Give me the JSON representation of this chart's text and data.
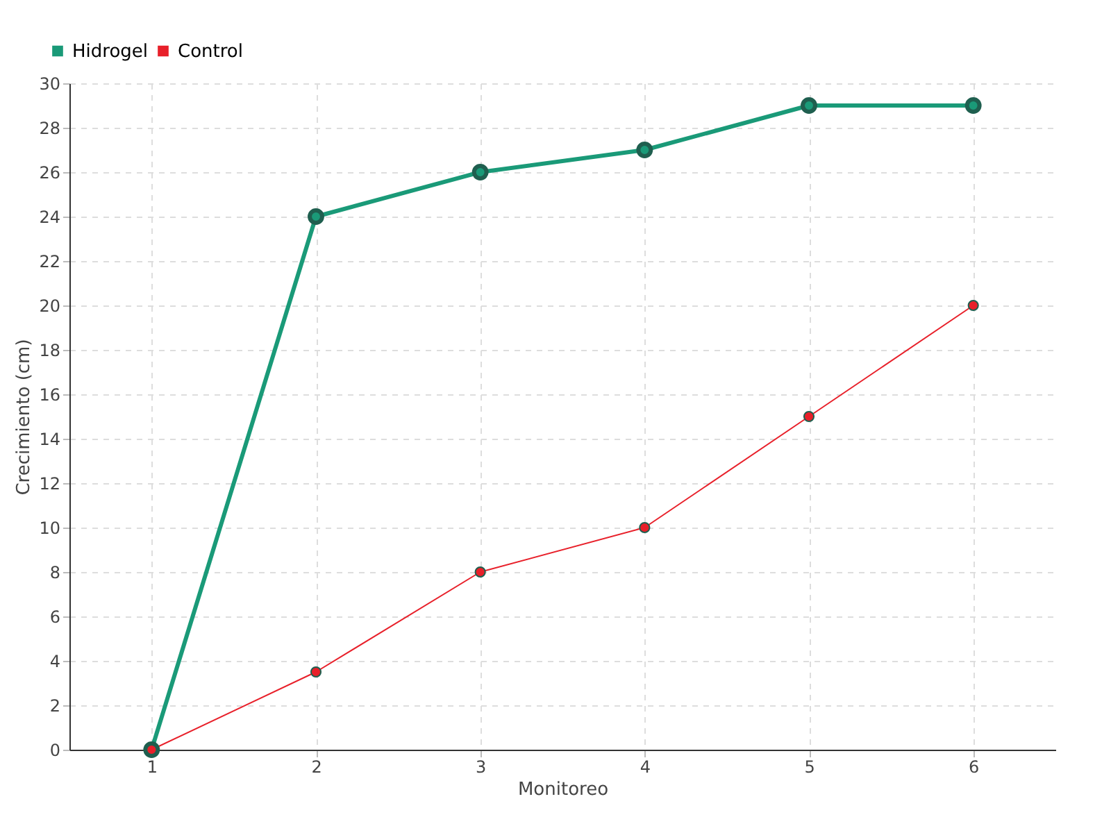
{
  "chart_data": {
    "type": "line",
    "xlabel": "Monitoreo",
    "ylabel": "Crecimiento (cm)",
    "x": [
      1,
      2,
      3,
      4,
      5,
      6
    ],
    "series": [
      {
        "name": "Hidrogel",
        "color": "#1a9a78",
        "values": [
          0,
          24,
          26,
          27,
          29,
          29
        ]
      },
      {
        "name": "Control",
        "color": "#e8202a",
        "values": [
          0,
          3.5,
          8,
          10,
          15,
          20
        ]
      }
    ],
    "xlim": [
      0.5,
      6.5
    ],
    "xticks": [
      1,
      2,
      3,
      4,
      5,
      6
    ],
    "ylim": [
      0,
      30
    ],
    "yticks": [
      0,
      2,
      4,
      6,
      8,
      10,
      12,
      14,
      16,
      18,
      20,
      22,
      24,
      26,
      28,
      30
    ],
    "grid": true,
    "legend": "top left",
    "marker": "circle",
    "line_style": "solid"
  }
}
